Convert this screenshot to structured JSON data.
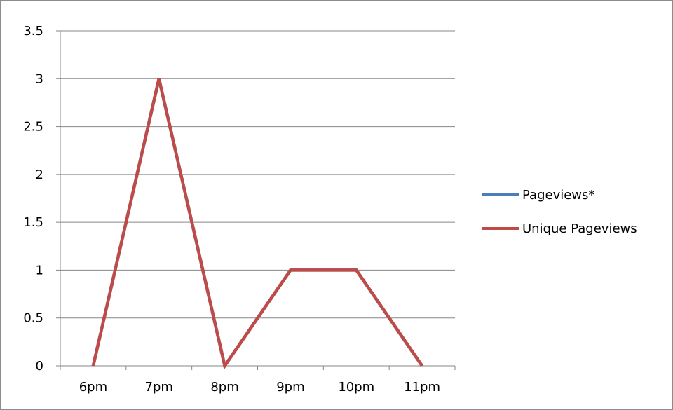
{
  "chart_data": {
    "type": "line",
    "categories": [
      "6pm",
      "7pm",
      "8pm",
      "9pm",
      "10pm",
      "11pm"
    ],
    "series": [
      {
        "name": "Pageviews*",
        "values": [
          0,
          3,
          0,
          1,
          1,
          0
        ],
        "color": "#4a7ebb"
      },
      {
        "name": "Unique Pageviews",
        "values": [
          0,
          3,
          0,
          1,
          1,
          0
        ],
        "color": "#be4b48"
      }
    ],
    "title": "",
    "xlabel": "",
    "ylabel": "",
    "ylim": [
      0,
      3.5
    ],
    "yticks": [
      "0",
      "0.5",
      "1",
      "1.5",
      "2",
      "2.5",
      "3",
      "3.5"
    ],
    "grid": "horizontal",
    "legend_position": "right"
  }
}
